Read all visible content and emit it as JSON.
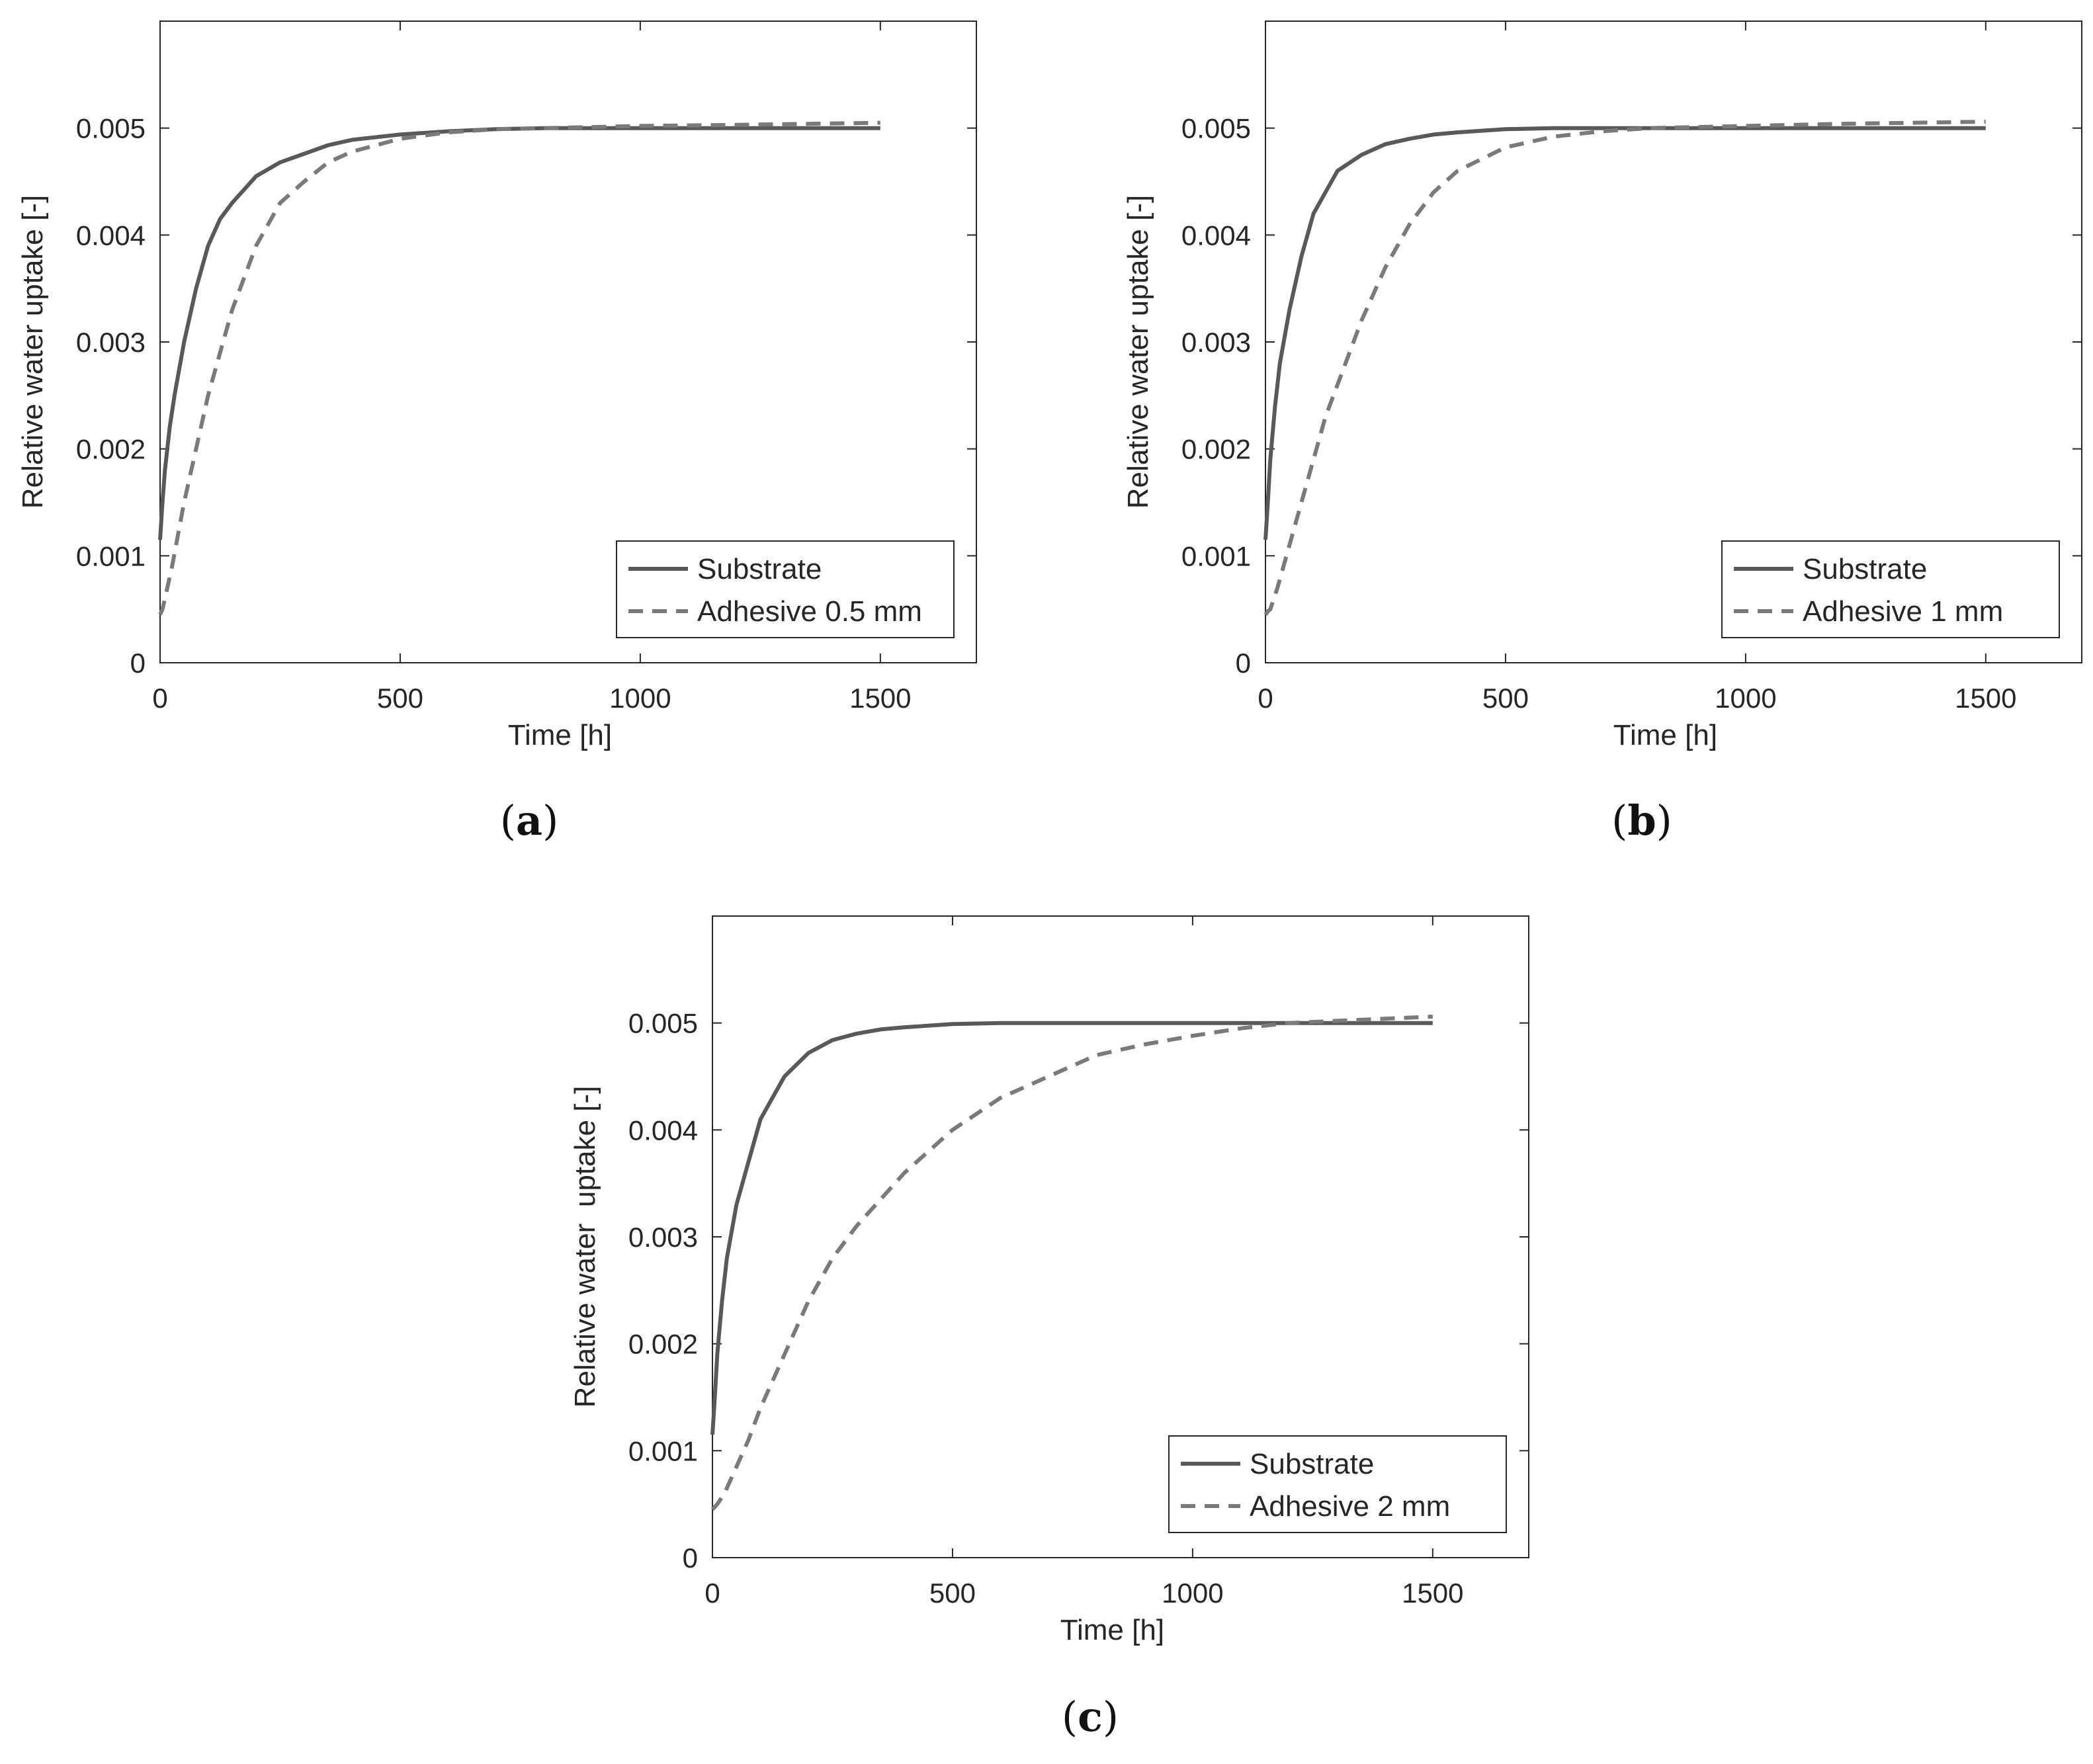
{
  "colors": {
    "substrate": "#595959",
    "adhesive": "#7a7a7a",
    "axes": "#262626",
    "background": "#ffffff"
  },
  "chart_data": [
    {
      "type": "line",
      "caption_letter": "a",
      "xlabel": "Time [h]",
      "ylabel": "Relative water uptake [-]",
      "xlim": [
        0,
        1700
      ],
      "ylim": [
        0,
        0.006
      ],
      "xticks": [
        0,
        500,
        1000,
        1500
      ],
      "xtick_labels": [
        "0",
        "500",
        "1000",
        "1500"
      ],
      "yticks": [
        0,
        0.001,
        0.002,
        0.003,
        0.004,
        0.005
      ],
      "ytick_labels": [
        "0",
        "0.001",
        "0.002",
        "0.003",
        "0.004",
        "0.005"
      ],
      "grid": false,
      "legend_position": "bottom-right",
      "series": [
        {
          "name": "Substrate",
          "style": "solid",
          "x": [
            0,
            5,
            10,
            20,
            30,
            50,
            75,
            100,
            125,
            150,
            200,
            250,
            300,
            350,
            400,
            500,
            600,
            700,
            800,
            1000,
            1200,
            1500
          ],
          "y": [
            0.00115,
            0.0015,
            0.0018,
            0.0022,
            0.0025,
            0.003,
            0.0035,
            0.0039,
            0.00415,
            0.0043,
            0.00455,
            0.00468,
            0.00476,
            0.00484,
            0.00489,
            0.00494,
            0.00497,
            0.00499,
            0.005,
            0.005,
            0.005,
            0.005
          ]
        },
        {
          "name": "Adhesive 0.5 mm",
          "style": "dashed",
          "x": [
            0,
            5,
            10,
            25,
            50,
            75,
            100,
            125,
            150,
            200,
            250,
            300,
            350,
            400,
            500,
            600,
            700,
            800,
            1000,
            1200,
            1500
          ],
          "y": [
            0.00045,
            0.0005,
            0.0006,
            0.0009,
            0.0015,
            0.002,
            0.0025,
            0.0029,
            0.0033,
            0.0039,
            0.0043,
            0.0045,
            0.00468,
            0.00478,
            0.0049,
            0.00496,
            0.00499,
            0.005,
            0.00502,
            0.00503,
            0.00505
          ]
        }
      ]
    },
    {
      "type": "line",
      "caption_letter": "b",
      "xlabel": "Time [h]",
      "ylabel": "Relative water uptake [-]",
      "xlim": [
        0,
        1700
      ],
      "ylim": [
        0,
        0.006
      ],
      "xticks": [
        0,
        500,
        1000,
        1500
      ],
      "xtick_labels": [
        "0",
        "500",
        "1000",
        "1500"
      ],
      "yticks": [
        0,
        0.001,
        0.002,
        0.003,
        0.004,
        0.005
      ],
      "ytick_labels": [
        "0",
        "0.001",
        "0.002",
        "0.003",
        "0.004",
        "0.005"
      ],
      "grid": false,
      "legend_position": "bottom-right",
      "series": [
        {
          "name": "Substrate",
          "style": "solid",
          "x": [
            0,
            5,
            10,
            20,
            30,
            50,
            75,
            100,
            125,
            150,
            200,
            250,
            300,
            350,
            400,
            500,
            600,
            700,
            800,
            1000,
            1200,
            1500
          ],
          "y": [
            0.00115,
            0.0015,
            0.0019,
            0.0024,
            0.0028,
            0.0033,
            0.0038,
            0.0042,
            0.0044,
            0.0046,
            0.00475,
            0.00485,
            0.0049,
            0.00494,
            0.00496,
            0.00499,
            0.005,
            0.005,
            0.005,
            0.005,
            0.005,
            0.005
          ]
        },
        {
          "name": "Adhesive 1 mm",
          "style": "dashed",
          "x": [
            0,
            5,
            10,
            25,
            50,
            75,
            100,
            125,
            150,
            200,
            250,
            300,
            350,
            400,
            500,
            600,
            700,
            800,
            1000,
            1200,
            1500
          ],
          "y": [
            0.00045,
            0.00048,
            0.0005,
            0.0007,
            0.0011,
            0.0015,
            0.0019,
            0.0023,
            0.0026,
            0.0032,
            0.0037,
            0.0041,
            0.0044,
            0.0046,
            0.00482,
            0.00492,
            0.00497,
            0.005,
            0.00502,
            0.00504,
            0.00506
          ]
        }
      ]
    },
    {
      "type": "line",
      "caption_letter": "c",
      "xlabel": "Time [h]",
      "ylabel": "Relative water  uptake [-]",
      "xlim": [
        0,
        1700
      ],
      "ylim": [
        0,
        0.006
      ],
      "xticks": [
        0,
        500,
        1000,
        1500
      ],
      "xtick_labels": [
        "0",
        "500",
        "1000",
        "1500"
      ],
      "yticks": [
        0,
        0.001,
        0.002,
        0.003,
        0.004,
        0.005
      ],
      "ytick_labels": [
        "0",
        "0.001",
        "0.002",
        "0.003",
        "0.004",
        "0.005"
      ],
      "grid": false,
      "legend_position": "bottom-right",
      "series": [
        {
          "name": "Substrate",
          "style": "solid",
          "x": [
            0,
            5,
            10,
            20,
            30,
            50,
            75,
            100,
            125,
            150,
            200,
            250,
            300,
            350,
            400,
            500,
            600,
            700,
            800,
            1000,
            1200,
            1500
          ],
          "y": [
            0.00115,
            0.0015,
            0.0019,
            0.0024,
            0.0028,
            0.0033,
            0.0037,
            0.0041,
            0.0043,
            0.0045,
            0.00472,
            0.00484,
            0.0049,
            0.00494,
            0.00496,
            0.00499,
            0.005,
            0.005,
            0.005,
            0.005,
            0.005,
            0.005
          ]
        },
        {
          "name": "Adhesive 2 mm",
          "style": "dashed",
          "x": [
            0,
            10,
            25,
            50,
            75,
            100,
            150,
            200,
            250,
            300,
            400,
            500,
            600,
            700,
            800,
            900,
            1000,
            1100,
            1200,
            1300,
            1500
          ],
          "y": [
            0.00045,
            0.0005,
            0.0006,
            0.00085,
            0.0011,
            0.0014,
            0.0019,
            0.0024,
            0.0028,
            0.0031,
            0.0036,
            0.004,
            0.0043,
            0.0045,
            0.0047,
            0.0048,
            0.00488,
            0.00495,
            0.005,
            0.00502,
            0.00506
          ]
        }
      ]
    }
  ]
}
